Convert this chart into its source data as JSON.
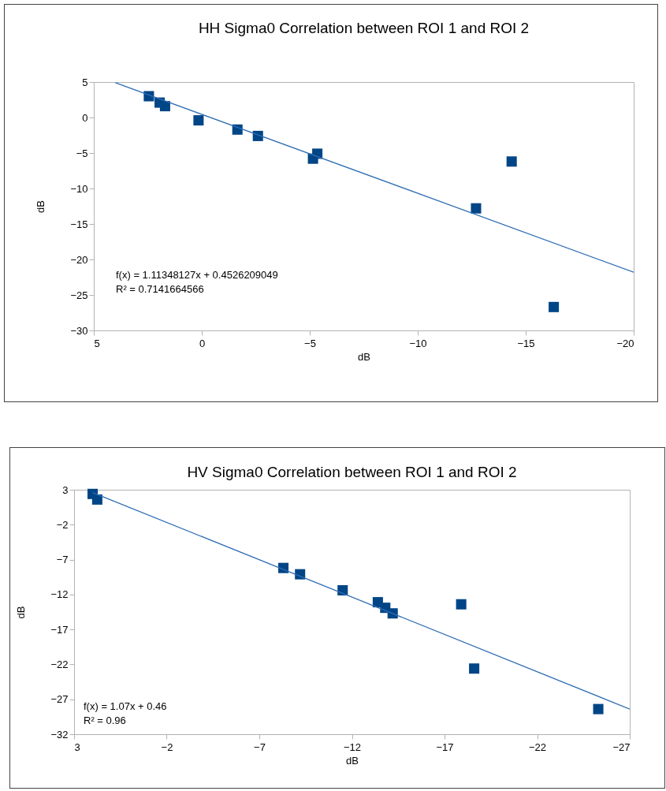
{
  "chart_data": [
    {
      "type": "scatter",
      "title": "HH Sigma0 Correlation between ROI 1 and ROI 2",
      "xlabel": "dB",
      "ylabel": "dB",
      "xlim": [
        5,
        -20
      ],
      "xticks": [
        5,
        0,
        -5,
        -10,
        -15,
        -20
      ],
      "ylim": [
        -30,
        5
      ],
      "yticks": [
        -30,
        -25,
        -20,
        -15,
        -10,
        -5,
        0,
        5
      ],
      "annotations": [
        "f(x) = 1.11348127x + 0.4526209049",
        "R² = 0.7141664566"
      ],
      "series": [
        {
          "color": "#004586",
          "marker": "square",
          "x": [
            2.45,
            1.95,
            1.7,
            0.15,
            -1.65,
            -2.6,
            -5.15,
            -5.35,
            -12.7,
            -14.35,
            -16.3
          ],
          "values": [
            3.0,
            2.1,
            1.6,
            -0.4,
            -1.7,
            -2.6,
            -5.8,
            -5.1,
            -12.8,
            -6.2,
            -26.7
          ]
        },
        {
          "type": "line",
          "color": "#2e6db4",
          "x": [
            4,
            -20
          ],
          "values": [
            4.9,
            -21.8
          ]
        }
      ]
    },
    {
      "type": "scatter",
      "title": "HV Sigma0 Correlation between ROI 1 and ROI 2",
      "xlabel": "dB",
      "ylabel": "dB",
      "xlim": [
        3,
        -27
      ],
      "xticks": [
        3,
        -2,
        -7,
        -12,
        -17,
        -22,
        -27
      ],
      "ylim": [
        -32,
        3
      ],
      "yticks": [
        -32,
        -27,
        -22,
        -17,
        -12,
        -7,
        -2,
        3
      ],
      "annotations": [
        "f(x) = 1.07x + 0.46",
        "R² = 0.96"
      ],
      "series": [
        {
          "color": "#004586",
          "marker": "square",
          "x": [
            2.0,
            1.75,
            -8.3,
            -9.2,
            -11.5,
            -13.4,
            -13.8,
            -14.2,
            -17.9,
            -18.6,
            -25.3
          ],
          "values": [
            2.4,
            1.6,
            -8.2,
            -9.1,
            -11.4,
            -13.1,
            -13.9,
            -14.7,
            -13.4,
            -22.6,
            -28.4
          ]
        },
        {
          "type": "line",
          "color": "#2e6db4",
          "x": [
            2,
            -27
          ],
          "values": [
            2.6,
            -28.4
          ]
        }
      ]
    }
  ]
}
